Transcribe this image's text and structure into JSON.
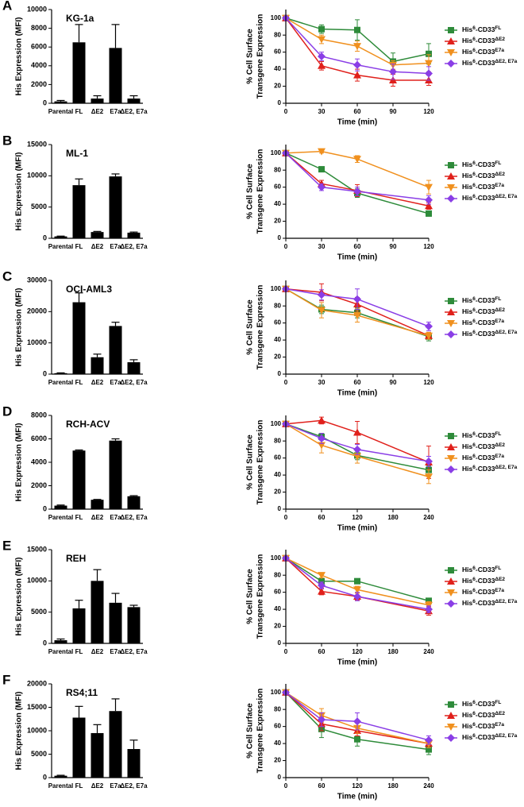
{
  "chart_data": [
    {
      "type": "bar",
      "panel": "A",
      "title": "KG-1a",
      "ylabel": "His Expression (MFI)",
      "categories": [
        "Parental",
        "FL",
        "ΔE2",
        "E7a",
        "ΔE2, E7a"
      ],
      "values": [
        200,
        6500,
        500,
        5900,
        500
      ],
      "errors": [
        100,
        1900,
        300,
        2500,
        300
      ],
      "color": "#000000",
      "ylim": [
        0,
        10000
      ],
      "yticks": [
        0,
        2000,
        4000,
        6000,
        8000,
        10000
      ]
    },
    {
      "type": "line",
      "xlabel": "Time (min)",
      "ylabel": [
        "% Cell Surface",
        "Transgene Expression"
      ],
      "x": [
        0,
        30,
        60,
        90,
        120
      ],
      "xlim": [
        0,
        120
      ],
      "xticks": [
        0,
        30,
        60,
        90,
        120
      ],
      "ylim": [
        0,
        110
      ],
      "yticks": [
        0,
        20,
        40,
        60,
        80,
        100
      ],
      "series": [
        {
          "name": "His6-CD33FL",
          "color": "#2e8b3a",
          "marker": "square",
          "values": [
            100,
            87,
            86,
            49,
            58
          ],
          "errors": [
            0,
            5,
            12,
            10,
            12
          ]
        },
        {
          "name": "His6-CD33ΔE2",
          "color": "#e0201b",
          "marker": "triangle-up",
          "values": [
            100,
            44,
            33,
            27,
            27
          ],
          "errors": [
            0,
            5,
            7,
            7,
            6
          ]
        },
        {
          "name": "His6-CD33E7a",
          "color": "#f0901e",
          "marker": "triangle-down",
          "values": [
            100,
            75,
            67,
            45,
            47
          ],
          "errors": [
            0,
            5,
            6,
            5,
            10
          ]
        },
        {
          "name": "His6-CD33ΔE2, E7a",
          "color": "#8a3ee6",
          "marker": "diamond",
          "values": [
            100,
            55,
            45,
            37,
            35
          ],
          "errors": [
            0,
            5,
            7,
            9,
            8
          ]
        }
      ]
    },
    {
      "type": "bar",
      "panel": "B",
      "title": "ML-1",
      "ylabel": "His Expression (MFI)",
      "categories": [
        "Parental",
        "FL",
        "ΔE2",
        "E7a",
        "ΔE2, E7a"
      ],
      "values": [
        300,
        8500,
        1000,
        9900,
        900
      ],
      "errors": [
        50,
        1000,
        100,
        400,
        100
      ],
      "color": "#000000",
      "ylim": [
        0,
        15000
      ],
      "yticks": [
        0,
        5000,
        10000,
        15000
      ]
    },
    {
      "type": "line",
      "xlabel": "Time (min)",
      "ylabel": [
        "% Cell Surface",
        "Transgene Expression"
      ],
      "x": [
        0,
        30,
        60,
        120
      ],
      "xlim": [
        0,
        120
      ],
      "xticks": [
        0,
        30,
        60,
        90,
        120
      ],
      "ylim": [
        0,
        110
      ],
      "yticks": [
        0,
        20,
        40,
        60,
        80,
        100
      ],
      "series": [
        {
          "name": "His6-CD33FL",
          "color": "#2e8b3a",
          "marker": "square",
          "values": [
            100,
            81,
            53,
            29
          ],
          "errors": [
            0,
            3,
            5,
            3
          ]
        },
        {
          "name": "His6-CD33ΔE2",
          "color": "#e0201b",
          "marker": "triangle-up",
          "values": [
            100,
            64,
            56,
            38
          ],
          "errors": [
            0,
            4,
            7,
            4
          ]
        },
        {
          "name": "His6-CD33E7a",
          "color": "#f0901e",
          "marker": "triangle-down",
          "values": [
            100,
            102,
            93,
            60
          ],
          "errors": [
            0,
            2,
            4,
            8
          ]
        },
        {
          "name": "His6-CD33ΔE2, E7a",
          "color": "#8a3ee6",
          "marker": "diamond",
          "values": [
            100,
            60,
            55,
            45
          ],
          "errors": [
            0,
            4,
            5,
            5
          ]
        }
      ]
    },
    {
      "type": "bar",
      "panel": "C",
      "title": "OCI-AML3",
      "ylabel": "His Expression (MFI)",
      "categories": [
        "Parental",
        "FL",
        "ΔE2",
        "E7a",
        "ΔE2, E7a"
      ],
      "values": [
        300,
        23000,
        5400,
        15400,
        3800
      ],
      "errors": [
        100,
        3000,
        1000,
        1200,
        800
      ],
      "color": "#000000",
      "ylim": [
        0,
        30000
      ],
      "yticks": [
        0,
        10000,
        20000,
        30000
      ]
    },
    {
      "type": "line",
      "xlabel": "Time (min)",
      "ylabel": [
        "% Cell Surface",
        "Transgene Expression"
      ],
      "x": [
        0,
        30,
        60,
        120
      ],
      "xlim": [
        0,
        120
      ],
      "xticks": [
        0,
        30,
        60,
        90,
        120
      ],
      "ylim": [
        0,
        110
      ],
      "yticks": [
        0,
        20,
        40,
        60,
        80,
        100
      ],
      "series": [
        {
          "name": "His6-CD33FL",
          "color": "#2e8b3a",
          "marker": "square",
          "values": [
            100,
            76,
            72,
            44
          ],
          "errors": [
            0,
            5,
            6,
            5
          ]
        },
        {
          "name": "His6-CD33ΔE2",
          "color": "#e0201b",
          "marker": "triangle-up",
          "values": [
            100,
            96,
            82,
            45
          ],
          "errors": [
            0,
            10,
            8,
            4
          ]
        },
        {
          "name": "His6-CD33E7a",
          "color": "#f0901e",
          "marker": "triangle-down",
          "values": [
            100,
            75,
            69,
            45
          ],
          "errors": [
            0,
            9,
            8,
            4
          ]
        },
        {
          "name": "His6-CD33ΔE2, E7a",
          "color": "#8a3ee6",
          "marker": "diamond",
          "values": [
            100,
            93,
            88,
            56
          ],
          "errors": [
            0,
            6,
            12,
            5
          ]
        }
      ]
    },
    {
      "type": "bar",
      "panel": "D",
      "title": "RCH-ACV",
      "ylabel": "His Expression (MFI)",
      "categories": [
        "Parental",
        "FL",
        "ΔE2",
        "E7a",
        "ΔE2, E7a"
      ],
      "values": [
        300,
        5000,
        800,
        5850,
        1100
      ],
      "errors": [
        50,
        50,
        30,
        150,
        50
      ],
      "color": "#000000",
      "ylim": [
        0,
        8000
      ],
      "yticks": [
        0,
        2000,
        4000,
        6000,
        8000
      ]
    },
    {
      "type": "line",
      "xlabel": "Time (min)",
      "ylabel": [
        "% Cell Surface",
        "Transgene Expression"
      ],
      "x": [
        0,
        60,
        120,
        240
      ],
      "xlim": [
        0,
        240
      ],
      "xticks": [
        0,
        60,
        120,
        180,
        240
      ],
      "ylim": [
        0,
        110
      ],
      "yticks": [
        0,
        20,
        40,
        60,
        80,
        100
      ],
      "series": [
        {
          "name": "His6-CD33FL",
          "color": "#2e8b3a",
          "marker": "square",
          "values": [
            100,
            85,
            63,
            46
          ],
          "errors": [
            0,
            4,
            5,
            5
          ]
        },
        {
          "name": "His6-CD33ΔE2",
          "color": "#e0201b",
          "marker": "triangle-up",
          "values": [
            100,
            104,
            90,
            55
          ],
          "errors": [
            0,
            4,
            13,
            19
          ]
        },
        {
          "name": "His6-CD33E7a",
          "color": "#f0901e",
          "marker": "triangle-down",
          "values": [
            100,
            75,
            62,
            38
          ],
          "errors": [
            0,
            9,
            8,
            8
          ]
        },
        {
          "name": "His6-CD33ΔE2, E7a",
          "color": "#8a3ee6",
          "marker": "diamond",
          "values": [
            100,
            83,
            70,
            56
          ],
          "errors": [
            0,
            6,
            6,
            6
          ]
        }
      ]
    },
    {
      "type": "bar",
      "panel": "E",
      "title": "REH",
      "ylabel": "His Expression (MFI)",
      "categories": [
        "Parental",
        "FL",
        "ΔE2",
        "E7a",
        "ΔE2, E7a"
      ],
      "values": [
        500,
        5600,
        10000,
        6500,
        5800
      ],
      "errors": [
        200,
        1300,
        1800,
        1500,
        300
      ],
      "color": "#000000",
      "ylim": [
        0,
        15000
      ],
      "yticks": [
        0,
        5000,
        10000,
        15000
      ]
    },
    {
      "type": "line",
      "xlabel": "Time (min)",
      "ylabel": [
        "% Cell Surface",
        "Transgene Expression"
      ],
      "x": [
        0,
        60,
        120,
        240
      ],
      "xlim": [
        0,
        240
      ],
      "xticks": [
        0,
        60,
        120,
        180,
        240
      ],
      "ylim": [
        0,
        110
      ],
      "yticks": [
        0,
        20,
        40,
        60,
        80,
        100
      ],
      "series": [
        {
          "name": "His6-CD33FL",
          "color": "#2e8b3a",
          "marker": "square",
          "values": [
            100,
            73,
            73,
            50
          ],
          "errors": [
            0,
            3,
            3,
            3
          ]
        },
        {
          "name": "His6-CD33ΔE2",
          "color": "#e0201b",
          "marker": "triangle-up",
          "values": [
            100,
            61,
            55,
            38
          ],
          "errors": [
            0,
            4,
            4,
            5
          ]
        },
        {
          "name": "His6-CD33E7a",
          "color": "#f0901e",
          "marker": "triangle-down",
          "values": [
            100,
            80,
            63,
            45
          ],
          "errors": [
            0,
            3,
            4,
            4
          ]
        },
        {
          "name": "His6-CD33ΔE2, E7a",
          "color": "#8a3ee6",
          "marker": "diamond",
          "values": [
            100,
            68,
            55,
            40
          ],
          "errors": [
            0,
            4,
            5,
            4
          ]
        }
      ]
    },
    {
      "type": "bar",
      "panel": "F",
      "title": "RS4;11",
      "ylabel": "His Expression (MFI)",
      "categories": [
        "Parental",
        "FL",
        "ΔE2",
        "E7a",
        "ΔE2, E7a"
      ],
      "values": [
        400,
        12800,
        9500,
        14200,
        6100
      ],
      "errors": [
        100,
        2400,
        1800,
        2600,
        1900
      ],
      "color": "#000000",
      "ylim": [
        0,
        20000
      ],
      "yticks": [
        0,
        5000,
        10000,
        15000,
        20000
      ]
    },
    {
      "type": "line",
      "xlabel": "Time (min)",
      "ylabel": [
        "% Cell Surface",
        "Transgene Expression"
      ],
      "x": [
        0,
        60,
        120,
        240
      ],
      "xlim": [
        0,
        240
      ],
      "xticks": [
        0,
        60,
        120,
        180,
        240
      ],
      "ylim": [
        0,
        110
      ],
      "yticks": [
        0,
        20,
        40,
        60,
        80,
        100
      ],
      "series": [
        {
          "name": "His6-CD33FL",
          "color": "#2e8b3a",
          "marker": "square",
          "values": [
            100,
            57,
            45,
            33
          ],
          "errors": [
            0,
            10,
            8,
            6
          ]
        },
        {
          "name": "His6-CD33ΔE2",
          "color": "#e0201b",
          "marker": "triangle-up",
          "values": [
            100,
            63,
            55,
            40
          ],
          "errors": [
            0,
            8,
            6,
            5
          ]
        },
        {
          "name": "His6-CD33E7a",
          "color": "#f0901e",
          "marker": "triangle-down",
          "values": [
            100,
            73,
            58,
            40
          ],
          "errors": [
            0,
            8,
            6,
            5
          ]
        },
        {
          "name": "His6-CD33ΔE2, E7a",
          "color": "#8a3ee6",
          "marker": "diamond",
          "values": [
            100,
            68,
            66,
            44
          ],
          "errors": [
            0,
            8,
            10,
            5
          ]
        }
      ]
    }
  ]
}
